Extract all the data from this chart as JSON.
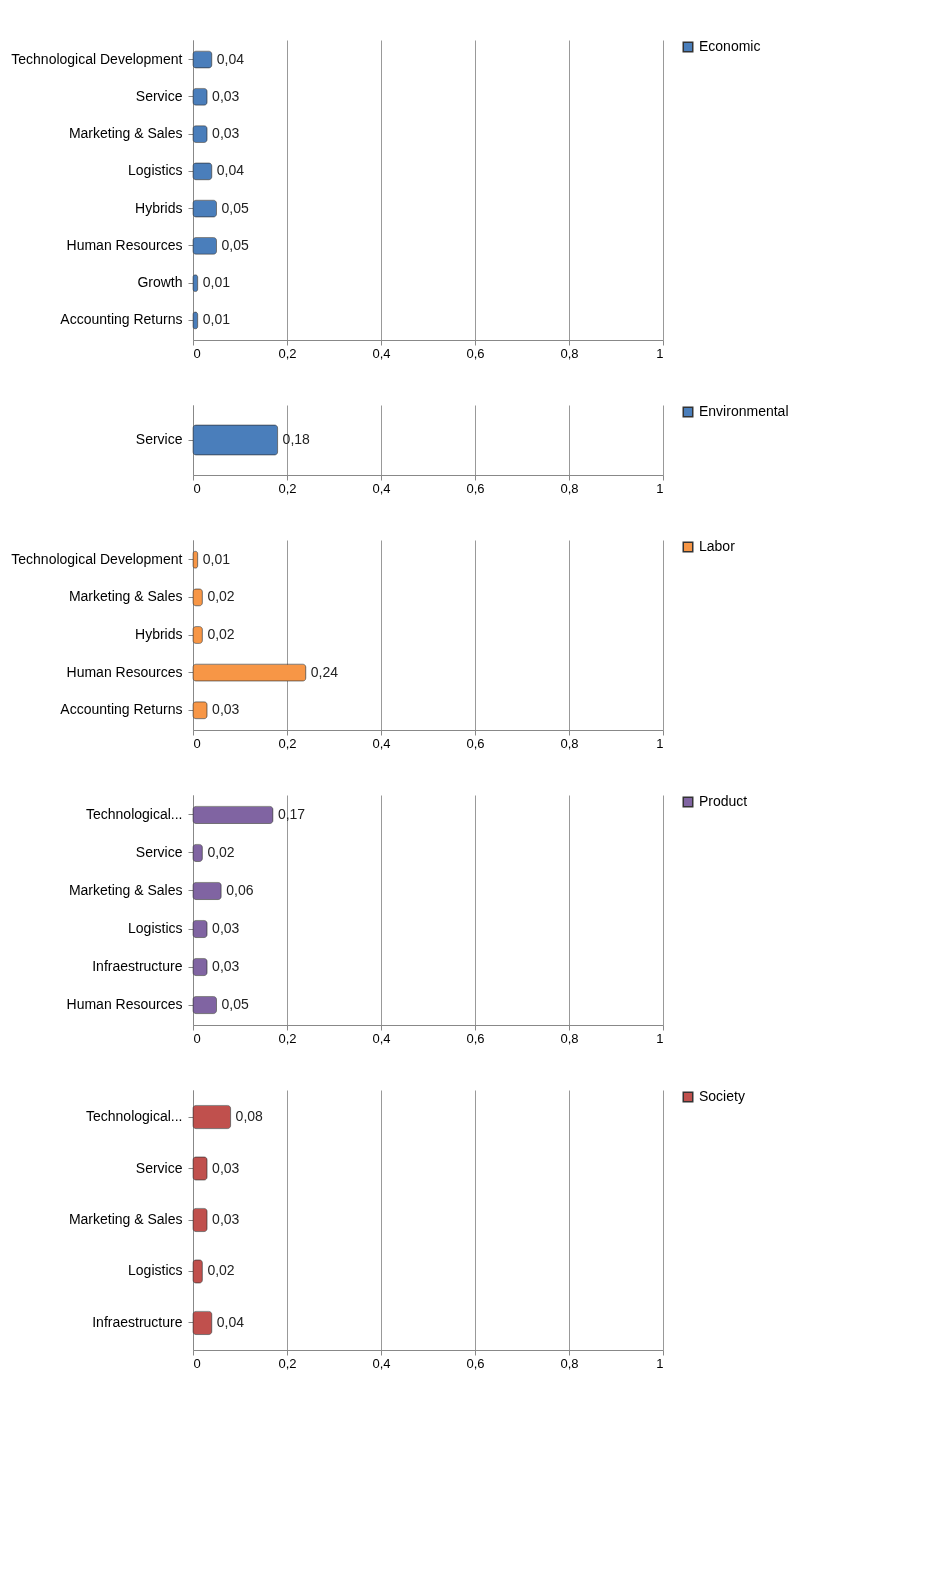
{
  "chart_data": [
    {
      "type": "bar",
      "orientation": "horizontal",
      "categories": [
        "Technological Development",
        "Service",
        "Marketing & Sales",
        "Logistics",
        "Hybrids",
        "Human Resources",
        "Growth",
        "Accounting Returns"
      ],
      "series": [
        {
          "name": "Economic",
          "color": "#4a7ebb",
          "values": [
            0.04,
            0.03,
            0.03,
            0.04,
            0.05,
            0.05,
            0.01,
            0.01
          ],
          "value_labels": [
            "0,04",
            "0,03",
            "0,03",
            "0,04",
            "0,05",
            "0,05",
            "0,01",
            "0,01"
          ]
        }
      ],
      "xlim": [
        0,
        1
      ],
      "xticks": [
        0,
        {
          "value": 0.2,
          "label": "0,2"
        },
        {
          "value": 0.4,
          "label": "0,4"
        },
        {
          "value": 0.6,
          "label": "0,6"
        },
        {
          "value": 0.8,
          "label": "0,8"
        },
        1
      ],
      "grid": "x",
      "legend": "right"
    },
    {
      "type": "bar",
      "orientation": "horizontal",
      "categories": [
        "Service"
      ],
      "series": [
        {
          "name": "Environmental",
          "color": "#4a7ebb",
          "values": [
            0.18
          ],
          "value_labels": [
            "0,18"
          ]
        }
      ],
      "xlim": [
        0,
        1
      ],
      "xticks": [
        0,
        {
          "value": 0.2,
          "label": "0,2"
        },
        {
          "value": 0.4,
          "label": "0,4"
        },
        {
          "value": 0.6,
          "label": "0,6"
        },
        {
          "value": 0.8,
          "label": "0,8"
        },
        1
      ],
      "grid": "x",
      "legend": "right"
    },
    {
      "type": "bar",
      "orientation": "horizontal",
      "categories": [
        "Technological Development",
        "Marketing & Sales",
        "Hybrids",
        "Human Resources",
        "Accounting Returns"
      ],
      "series": [
        {
          "name": "Labor",
          "color": "#f79646",
          "values": [
            0.01,
            0.02,
            0.02,
            0.24,
            0.03
          ],
          "value_labels": [
            "0,01",
            "0,02",
            "0,02",
            "0,24",
            "0,03"
          ]
        }
      ],
      "xlim": [
        0,
        1
      ],
      "xticks": [
        0,
        {
          "value": 0.2,
          "label": "0,2"
        },
        {
          "value": 0.4,
          "label": "0,4"
        },
        {
          "value": 0.6,
          "label": "0,6"
        },
        {
          "value": 0.8,
          "label": "0,8"
        },
        1
      ],
      "grid": "x",
      "legend": "right"
    },
    {
      "type": "bar",
      "orientation": "horizontal",
      "categories": [
        "Technological...",
        "Service",
        "Marketing & Sales",
        "Logistics",
        "Infraestructure",
        "Human Resources"
      ],
      "series": [
        {
          "name": "Product",
          "color": "#8064a2",
          "values": [
            0.17,
            0.02,
            0.06,
            0.03,
            0.03,
            0.05
          ],
          "value_labels": [
            "0,17",
            "0,02",
            "0,06",
            "0,03",
            "0,03",
            "0,05"
          ]
        }
      ],
      "xlim": [
        0,
        1
      ],
      "xticks": [
        0,
        {
          "value": 0.2,
          "label": "0,2"
        },
        {
          "value": 0.4,
          "label": "0,4"
        },
        {
          "value": 0.6,
          "label": "0,6"
        },
        {
          "value": 0.8,
          "label": "0,8"
        },
        1
      ],
      "grid": "x",
      "legend": "right"
    },
    {
      "type": "bar",
      "orientation": "horizontal",
      "categories": [
        "Technological...",
        "Service",
        "Marketing & Sales",
        "Logistics",
        "Infraestructure"
      ],
      "series": [
        {
          "name": "Society",
          "color": "#c0504d",
          "values": [
            0.08,
            0.03,
            0.03,
            0.02,
            0.04
          ],
          "value_labels": [
            "0,08",
            "0,03",
            "0,03",
            "0,02",
            "0,04"
          ]
        }
      ],
      "xlim": [
        0,
        1
      ],
      "xticks": [
        0,
        {
          "value": 0.2,
          "label": "0,2"
        },
        {
          "value": 0.4,
          "label": "0,4"
        },
        {
          "value": 0.6,
          "label": "0,6"
        },
        {
          "value": 0.8,
          "label": "0,8"
        },
        1
      ],
      "grid": "x",
      "legend": "right"
    }
  ]
}
